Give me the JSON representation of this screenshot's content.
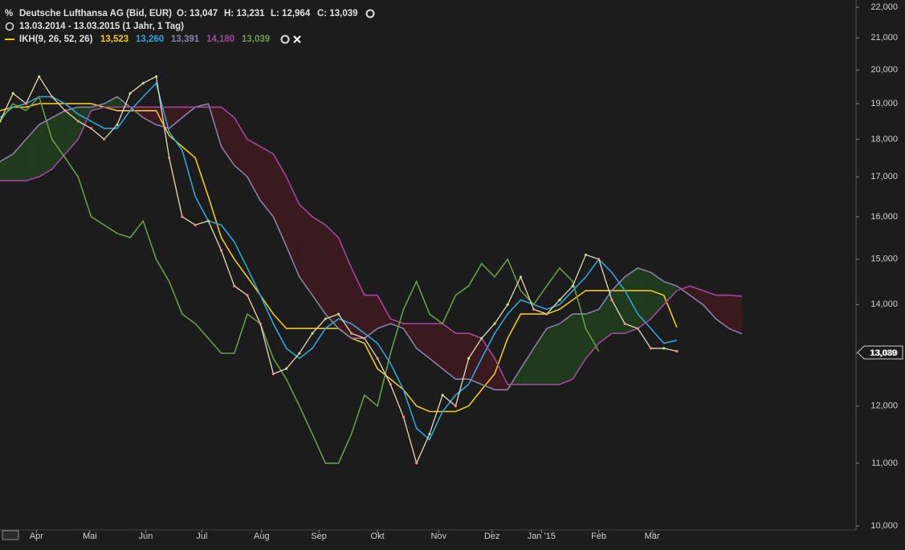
{
  "chart_data": {
    "type": "line",
    "title": "Deutsche Lufthansa AG (Bid, EUR)",
    "ohlc": [
      "O: 13,047",
      "H: 13,231",
      "L: 12,964",
      "C: 13,039"
    ],
    "period": "13.03.2014 - 13.03.2015 (1 Jahr, 1 Tag)",
    "indicator": "IKH(9, 26, 52, 26)",
    "last_price_label": "13,039",
    "log_scale": true,
    "grid": false,
    "ylim": [
      10,
      22
    ],
    "yticks": [
      {
        "value": 10,
        "label": "10,000"
      },
      {
        "value": 11,
        "label": "11,000"
      },
      {
        "value": 12,
        "label": "12,000"
      },
      {
        "value": 13,
        "label": "13,000"
      },
      {
        "value": 14,
        "label": "14,000"
      },
      {
        "value": 15,
        "label": "15,000"
      },
      {
        "value": 16,
        "label": "16,000"
      },
      {
        "value": 17,
        "label": "17,000"
      },
      {
        "value": 18,
        "label": "18,000"
      },
      {
        "value": 19,
        "label": "19,000"
      },
      {
        "value": 20,
        "label": "20,000"
      },
      {
        "value": 21,
        "label": "21,000"
      },
      {
        "value": 22,
        "label": "22,000"
      }
    ],
    "xlim": [
      0,
      65.7
    ],
    "xticks": [
      {
        "value": 2.8,
        "label": "Apr"
      },
      {
        "value": 6.9,
        "label": "Mai"
      },
      {
        "value": 11.2,
        "label": "Jun"
      },
      {
        "value": 15.5,
        "label": "Jul"
      },
      {
        "value": 20.1,
        "label": "Aug"
      },
      {
        "value": 24.5,
        "label": "Sep"
      },
      {
        "value": 29.0,
        "label": "Okt"
      },
      {
        "value": 33.7,
        "label": "Nov"
      },
      {
        "value": 37.8,
        "label": "Dez"
      },
      {
        "value": 41.6,
        "label": "Jan '15"
      },
      {
        "value": 46.0,
        "label": "Feb"
      },
      {
        "value": 50.1,
        "label": "Mär"
      }
    ],
    "price": {
      "color": "#e6d9b8",
      "x": [
        0,
        1,
        2,
        3,
        4,
        5,
        6,
        7,
        8,
        9,
        10,
        11,
        12,
        13,
        14,
        15,
        16,
        17,
        18,
        19,
        20,
        21,
        22,
        23,
        24,
        25,
        26,
        27,
        28,
        29,
        30,
        31,
        32,
        33,
        34,
        35,
        36,
        37,
        38,
        39,
        40,
        41,
        42,
        43,
        44,
        45,
        46,
        47,
        48,
        49,
        50,
        51,
        52
      ],
      "values": [
        18.5,
        19.3,
        19.0,
        19.8,
        19.2,
        18.8,
        18.5,
        18.3,
        18.0,
        18.4,
        19.3,
        19.6,
        19.8,
        17.5,
        16.0,
        15.8,
        15.9,
        15.2,
        14.4,
        14.2,
        13.6,
        12.6,
        12.7,
        13.0,
        13.4,
        13.7,
        13.8,
        13.4,
        13.3,
        12.9,
        12.4,
        11.8,
        11.0,
        11.5,
        12.2,
        12.0,
        12.9,
        13.3,
        13.6,
        14.0,
        14.6,
        13.9,
        13.8,
        14.1,
        14.4,
        15.1,
        15.0,
        14.1,
        13.6,
        13.5,
        13.1,
        13.1,
        13.04
      ]
    },
    "series": [
      {
        "name": "13,523",
        "color": "#f2c811",
        "x": [
          0,
          1,
          2,
          3,
          4,
          5,
          6,
          7,
          8,
          9,
          10,
          11,
          12,
          13,
          14,
          15,
          16,
          17,
          18,
          19,
          20,
          21,
          22,
          23,
          24,
          25,
          26,
          27,
          28,
          29,
          30,
          31,
          32,
          33,
          34,
          35,
          36,
          37,
          38,
          39,
          40,
          41,
          42,
          43,
          44,
          45,
          46,
          47,
          48,
          49,
          50,
          51,
          52
        ],
        "values": [
          18.8,
          18.9,
          18.9,
          19.0,
          19.0,
          19.0,
          19.0,
          19.0,
          18.9,
          18.8,
          18.8,
          18.8,
          18.8,
          18.1,
          17.8,
          17.5,
          16.5,
          15.5,
          15.0,
          14.6,
          14.2,
          13.8,
          13.5,
          13.5,
          13.5,
          13.5,
          13.5,
          13.3,
          13.2,
          12.7,
          12.5,
          12.3,
          12.0,
          11.9,
          11.9,
          11.9,
          12.0,
          12.3,
          12.6,
          13.3,
          13.8,
          13.8,
          13.8,
          13.9,
          14.1,
          14.3,
          14.3,
          14.3,
          14.3,
          14.3,
          14.3,
          14.2,
          13.523
        ]
      },
      {
        "name": "13,260",
        "color": "#2fa4d8",
        "x": [
          0,
          1,
          2,
          3,
          4,
          5,
          6,
          7,
          8,
          9,
          10,
          11,
          12,
          13,
          14,
          15,
          16,
          17,
          18,
          19,
          20,
          21,
          22,
          23,
          24,
          25,
          26,
          27,
          28,
          29,
          30,
          31,
          32,
          33,
          34,
          35,
          36,
          37,
          38,
          39,
          40,
          41,
          42,
          43,
          44,
          45,
          46,
          47,
          48,
          49,
          50,
          51,
          52
        ],
        "values": [
          18.6,
          18.9,
          19.0,
          19.2,
          19.2,
          19.0,
          18.7,
          18.5,
          18.3,
          18.3,
          18.8,
          19.2,
          19.6,
          18.2,
          17.7,
          16.5,
          15.9,
          15.8,
          15.4,
          14.8,
          14.2,
          13.6,
          13.1,
          12.9,
          13.1,
          13.5,
          13.7,
          13.6,
          13.4,
          13.2,
          12.8,
          12.3,
          11.6,
          11.4,
          11.9,
          12.2,
          12.4,
          12.9,
          13.4,
          13.8,
          14.1,
          14.0,
          13.9,
          14.0,
          14.3,
          14.6,
          15.0,
          14.7,
          14.3,
          13.8,
          13.5,
          13.2,
          13.26
        ]
      },
      {
        "name": "13,391",
        "color": "#8a7fa8",
        "x": [
          0,
          1,
          2,
          3,
          4,
          5,
          6,
          7,
          8,
          9,
          10,
          11,
          12,
          13,
          14,
          15,
          16,
          17,
          18,
          19,
          20,
          21,
          22,
          23,
          24,
          25,
          26,
          27,
          28,
          29,
          30,
          31,
          32,
          33,
          34,
          35,
          36,
          37,
          38,
          39,
          40,
          41,
          42,
          43,
          44,
          45,
          46,
          47,
          48,
          49,
          50,
          51,
          52,
          53,
          54,
          55,
          56,
          57
        ],
        "values": [
          17.4,
          17.6,
          18.0,
          18.4,
          18.6,
          18.8,
          18.9,
          18.9,
          19.0,
          19.2,
          18.9,
          18.6,
          18.4,
          18.3,
          18.6,
          18.9,
          19.0,
          17.8,
          17.3,
          17.0,
          16.4,
          16.0,
          15.3,
          14.6,
          14.2,
          13.8,
          13.5,
          13.3,
          13.3,
          13.5,
          13.6,
          13.5,
          13.1,
          12.9,
          12.7,
          12.5,
          12.5,
          12.4,
          12.3,
          12.3,
          12.7,
          13.1,
          13.5,
          13.6,
          13.8,
          13.8,
          13.9,
          14.3,
          14.6,
          14.8,
          14.7,
          14.5,
          14.4,
          14.2,
          14.0,
          13.7,
          13.5,
          13.391
        ]
      },
      {
        "name": "14,180",
        "color": "#a0489a",
        "x": [
          0,
          1,
          2,
          3,
          4,
          5,
          6,
          7,
          8,
          9,
          10,
          11,
          12,
          13,
          14,
          15,
          16,
          17,
          18,
          19,
          20,
          21,
          22,
          23,
          24,
          25,
          26,
          27,
          28,
          29,
          30,
          31,
          32,
          33,
          34,
          35,
          36,
          37,
          38,
          39,
          40,
          41,
          42,
          43,
          44,
          45,
          46,
          47,
          48,
          49,
          50,
          51,
          52,
          53,
          54,
          55,
          56,
          57
        ],
        "values": [
          16.9,
          16.9,
          16.9,
          17.0,
          17.2,
          17.6,
          18.0,
          18.8,
          18.9,
          18.9,
          18.9,
          18.9,
          18.9,
          18.9,
          18.9,
          18.9,
          18.9,
          18.9,
          18.6,
          18.0,
          17.8,
          17.6,
          17.0,
          16.3,
          16.0,
          15.8,
          15.5,
          14.8,
          14.2,
          14.2,
          13.7,
          13.6,
          13.6,
          13.6,
          13.6,
          13.4,
          13.4,
          13.3,
          12.9,
          12.4,
          12.4,
          12.4,
          12.4,
          12.4,
          12.5,
          12.9,
          13.2,
          13.4,
          13.4,
          13.5,
          13.7,
          14.0,
          14.3,
          14.4,
          14.3,
          14.2,
          14.2,
          14.18
        ]
      },
      {
        "name": "13,039",
        "color": "#6a9a4a",
        "x": [
          0,
          1,
          2,
          3,
          4,
          5,
          6,
          7,
          8,
          9,
          10,
          11,
          12,
          13,
          14,
          15,
          16,
          17,
          18,
          19,
          20,
          21,
          22,
          23,
          24,
          25,
          26,
          27,
          28,
          29,
          30,
          31,
          32,
          33,
          34,
          35,
          36,
          37,
          38,
          39,
          40,
          41,
          42,
          43,
          44,
          45,
          46
        ],
        "values": [
          18.5,
          19.0,
          18.8,
          19.2,
          18.0,
          17.5,
          17.0,
          16.0,
          15.8,
          15.6,
          15.5,
          15.9,
          15.0,
          14.5,
          13.8,
          13.6,
          13.3,
          13.0,
          13.0,
          13.8,
          13.6,
          12.9,
          12.5,
          12.0,
          11.5,
          11.0,
          11.0,
          11.5,
          12.2,
          12.0,
          13.0,
          13.9,
          14.5,
          13.8,
          13.6,
          14.2,
          14.4,
          14.9,
          14.6,
          15.0,
          14.3,
          14.0,
          14.4,
          14.8,
          14.5,
          13.5,
          13.039
        ]
      }
    ],
    "cloud_colors": [
      "#1f3a1c",
      "#3a1a1e"
    ]
  }
}
